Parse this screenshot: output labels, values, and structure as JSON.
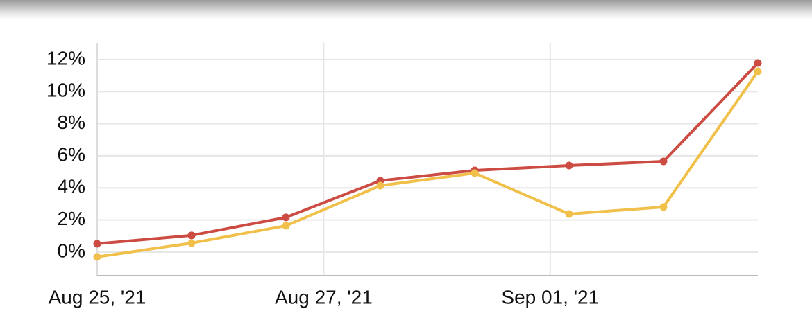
{
  "chart_data": {
    "type": "line",
    "x": [
      0,
      1,
      2,
      3,
      4,
      5,
      6,
      7
    ],
    "xlim": [
      0,
      7
    ],
    "xticks": [
      {
        "value": 0,
        "label": "Aug 25, '21"
      },
      {
        "value": 2.4,
        "label": "Aug 27, '21"
      },
      {
        "value": 4.8,
        "label": "Sep 01, '21"
      }
    ],
    "ylim": [
      -1.47,
      13.03
    ],
    "yticks": [
      {
        "value": 0,
        "label": "0%"
      },
      {
        "value": 2,
        "label": "2%"
      },
      {
        "value": 4,
        "label": "4%"
      },
      {
        "value": 6,
        "label": "6%"
      },
      {
        "value": 8,
        "label": "8%"
      },
      {
        "value": 10,
        "label": "10%"
      },
      {
        "value": 12,
        "label": "12%"
      }
    ],
    "grid": true,
    "series": [
      {
        "color": "#cc4b42",
        "values": [
          0.52,
          1.04,
          2.16,
          4.45,
          5.09,
          5.39,
          5.65,
          11.78
        ]
      },
      {
        "color": "#f0c04a",
        "values": [
          -0.3,
          0.56,
          1.64,
          4.14,
          4.92,
          2.37,
          2.81,
          11.26
        ]
      }
    ]
  }
}
